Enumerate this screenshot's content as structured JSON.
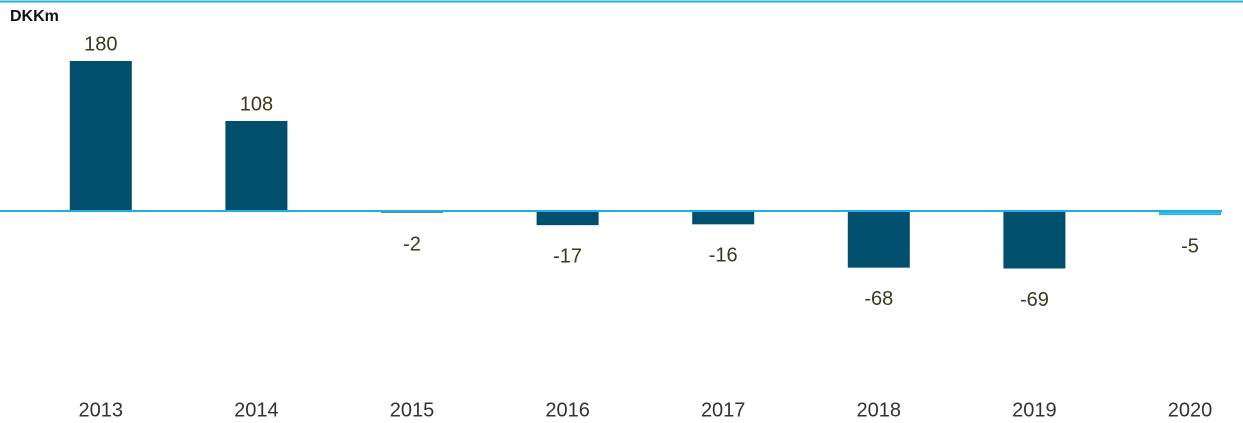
{
  "chart_data": {
    "type": "bar",
    "y_label": "DKKm",
    "categories": [
      "2013",
      "2014",
      "2015",
      "2016",
      "2017",
      "2018",
      "2019",
      "2020"
    ],
    "values": [
      180,
      108,
      -2,
      -17,
      -16,
      -68,
      -69,
      -5
    ],
    "colors": [
      "#004f6d",
      "#004f6d",
      "#004f6d",
      "#004f6d",
      "#004f6d",
      "#004f6d",
      "#004f6d",
      "#2eb9e6"
    ],
    "ylim": [
      -120,
      180
    ],
    "grid": false
  }
}
